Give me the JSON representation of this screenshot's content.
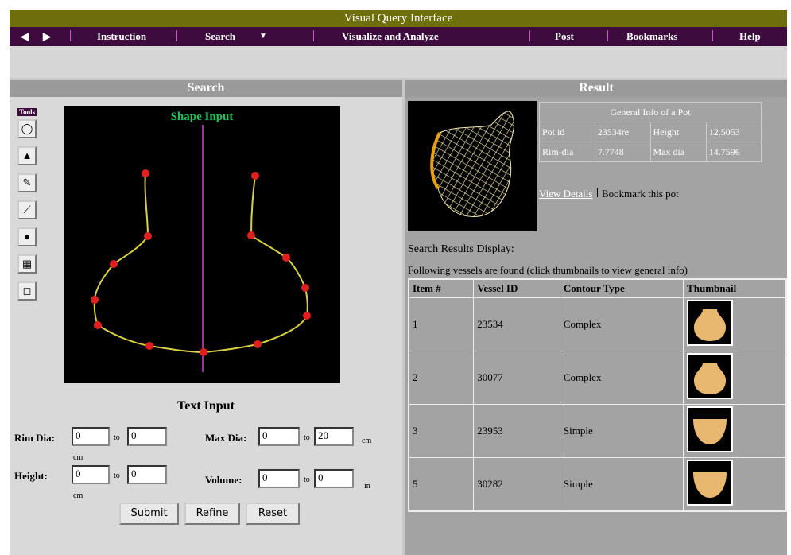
{
  "header": {
    "title": "Visual Query Interface"
  },
  "nav": [
    "Instruction",
    "Search",
    "Visualize and Analyze",
    "Post",
    "Bookmarks",
    "Help"
  ],
  "search": {
    "title": "Search",
    "tools_label": "Tools",
    "shape_title": "Shape Input",
    "text_title": "Text Input",
    "fields": [
      {
        "label": "Rim Dia:",
        "from": "0",
        "to_word": "to",
        "to": "0",
        "unit": "cm"
      },
      {
        "label": "Max Dia:",
        "from": "0",
        "to_word": "to",
        "to": "20",
        "unit": "cm"
      },
      {
        "label": "Height:",
        "from": "0",
        "to_word": "to",
        "to": "0",
        "unit": "cm"
      },
      {
        "label": "Volume:",
        "from": "0",
        "to_word": "to",
        "to": "0",
        "unit": "in"
      }
    ],
    "buttons": [
      "Submit",
      "Refine",
      "Reset"
    ]
  },
  "result": {
    "title": "Result",
    "info": {
      "title": "General Info of a Pot",
      "rows": [
        [
          "Pot id",
          "23534re",
          "Height",
          "12.5053"
        ],
        [
          "Rim-dia",
          "7.7748",
          "Max dia",
          "14.7596"
        ]
      ]
    },
    "links": [
      "View Details",
      "Bookmark this pot"
    ],
    "display_title": "Search Results Display:",
    "note": "Following vessels are found (click thumbnails to view general info)",
    "table": {
      "headers": [
        "Item #",
        "Vessel ID",
        "Contour Type",
        "Thumbnail"
      ],
      "rows": [
        [
          "1",
          "23534",
          "Complex"
        ],
        [
          "2",
          "30077",
          "Complex"
        ],
        [
          "3",
          "23953",
          "Simple"
        ],
        [
          "5",
          "30282",
          "Simple"
        ]
      ]
    }
  }
}
